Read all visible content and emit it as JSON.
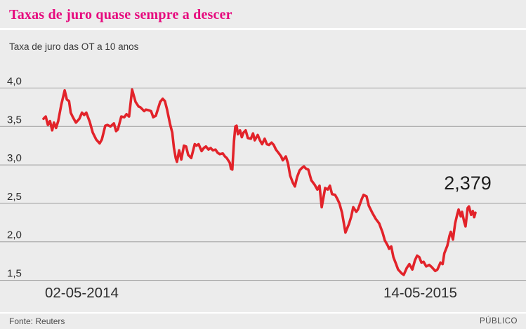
{
  "header": {
    "title": "Taxas de juro quase sempre a descer",
    "subtitle": "Taxa de juro das OT a 10 anos"
  },
  "chart_data": {
    "type": "line",
    "title": "Taxas de juro quase sempre a descer",
    "subtitle": "Taxa de juro das OT a 10 anos",
    "grid": true,
    "legend": false,
    "x_axis": {
      "start_label": "02-05-2014",
      "end_label": "14-05-2015",
      "note": "x given as fraction of time span from first to last observation"
    },
    "y_axis": {
      "range": [
        1.5,
        4.0
      ],
      "ticks": [
        {
          "label": "4,0",
          "value": 4.0
        },
        {
          "label": "3,5",
          "value": 3.5
        },
        {
          "label": "3,0",
          "value": 3.0
        },
        {
          "label": "2,5",
          "value": 2.5
        },
        {
          "label": "2,0",
          "value": 2.0
        },
        {
          "label": "1,5",
          "value": 1.5
        }
      ]
    },
    "annotation": {
      "label": "2,379",
      "value": 2.379
    },
    "series": [
      {
        "name": "Taxa de juro das OT a 10 anos",
        "points": [
          [
            0.0,
            3.6
          ],
          [
            0.005,
            3.63
          ],
          [
            0.01,
            3.52
          ],
          [
            0.015,
            3.57
          ],
          [
            0.02,
            3.45
          ],
          [
            0.024,
            3.55
          ],
          [
            0.029,
            3.48
          ],
          [
            0.034,
            3.57
          ],
          [
            0.041,
            3.78
          ],
          [
            0.049,
            3.97
          ],
          [
            0.054,
            3.85
          ],
          [
            0.059,
            3.83
          ],
          [
            0.063,
            3.68
          ],
          [
            0.068,
            3.62
          ],
          [
            0.075,
            3.55
          ],
          [
            0.083,
            3.6
          ],
          [
            0.089,
            3.68
          ],
          [
            0.094,
            3.65
          ],
          [
            0.099,
            3.68
          ],
          [
            0.107,
            3.56
          ],
          [
            0.114,
            3.42
          ],
          [
            0.122,
            3.33
          ],
          [
            0.13,
            3.28
          ],
          [
            0.135,
            3.33
          ],
          [
            0.143,
            3.51
          ],
          [
            0.148,
            3.52
          ],
          [
            0.155,
            3.5
          ],
          [
            0.163,
            3.54
          ],
          [
            0.168,
            3.44
          ],
          [
            0.172,
            3.46
          ],
          [
            0.18,
            3.63
          ],
          [
            0.187,
            3.62
          ],
          [
            0.192,
            3.66
          ],
          [
            0.198,
            3.63
          ],
          [
            0.205,
            3.98
          ],
          [
            0.213,
            3.82
          ],
          [
            0.22,
            3.76
          ],
          [
            0.224,
            3.75
          ],
          [
            0.233,
            3.7
          ],
          [
            0.237,
            3.72
          ],
          [
            0.244,
            3.71
          ],
          [
            0.249,
            3.7
          ],
          [
            0.254,
            3.62
          ],
          [
            0.26,
            3.64
          ],
          [
            0.265,
            3.73
          ],
          [
            0.27,
            3.82
          ],
          [
            0.276,
            3.86
          ],
          [
            0.281,
            3.83
          ],
          [
            0.286,
            3.72
          ],
          [
            0.293,
            3.53
          ],
          [
            0.298,
            3.42
          ],
          [
            0.302,
            3.22
          ],
          [
            0.306,
            3.09
          ],
          [
            0.309,
            3.04
          ],
          [
            0.314,
            3.19
          ],
          [
            0.319,
            3.07
          ],
          [
            0.325,
            3.25
          ],
          [
            0.33,
            3.24
          ],
          [
            0.335,
            3.13
          ],
          [
            0.342,
            3.09
          ],
          [
            0.35,
            3.27
          ],
          [
            0.354,
            3.25
          ],
          [
            0.359,
            3.27
          ],
          [
            0.366,
            3.18
          ],
          [
            0.371,
            3.22
          ],
          [
            0.376,
            3.24
          ],
          [
            0.382,
            3.2
          ],
          [
            0.387,
            3.22
          ],
          [
            0.392,
            3.19
          ],
          [
            0.398,
            3.2
          ],
          [
            0.403,
            3.16
          ],
          [
            0.408,
            3.14
          ],
          [
            0.415,
            3.15
          ],
          [
            0.42,
            3.11
          ],
          [
            0.424,
            3.09
          ],
          [
            0.431,
            3.03
          ],
          [
            0.434,
            2.95
          ],
          [
            0.437,
            2.94
          ],
          [
            0.441,
            3.31
          ],
          [
            0.444,
            3.5
          ],
          [
            0.447,
            3.51
          ],
          [
            0.45,
            3.4
          ],
          [
            0.455,
            3.45
          ],
          [
            0.459,
            3.36
          ],
          [
            0.463,
            3.42
          ],
          [
            0.468,
            3.45
          ],
          [
            0.473,
            3.35
          ],
          [
            0.48,
            3.34
          ],
          [
            0.485,
            3.41
          ],
          [
            0.489,
            3.32
          ],
          [
            0.496,
            3.39
          ],
          [
            0.501,
            3.32
          ],
          [
            0.506,
            3.27
          ],
          [
            0.512,
            3.34
          ],
          [
            0.517,
            3.27
          ],
          [
            0.522,
            3.26
          ],
          [
            0.528,
            3.29
          ],
          [
            0.533,
            3.26
          ],
          [
            0.538,
            3.2
          ],
          [
            0.545,
            3.15
          ],
          [
            0.55,
            3.11
          ],
          [
            0.554,
            3.06
          ],
          [
            0.561,
            3.11
          ],
          [
            0.566,
            3.02
          ],
          [
            0.571,
            2.86
          ],
          [
            0.577,
            2.77
          ],
          [
            0.582,
            2.72
          ],
          [
            0.587,
            2.84
          ],
          [
            0.593,
            2.93
          ],
          [
            0.598,
            2.96
          ],
          [
            0.603,
            2.98
          ],
          [
            0.608,
            2.95
          ],
          [
            0.613,
            2.94
          ],
          [
            0.62,
            2.8
          ],
          [
            0.628,
            2.74
          ],
          [
            0.634,
            2.68
          ],
          [
            0.639,
            2.73
          ],
          [
            0.644,
            2.45
          ],
          [
            0.652,
            2.7
          ],
          [
            0.658,
            2.68
          ],
          [
            0.663,
            2.73
          ],
          [
            0.668,
            2.62
          ],
          [
            0.675,
            2.61
          ],
          [
            0.68,
            2.56
          ],
          [
            0.685,
            2.5
          ],
          [
            0.691,
            2.38
          ],
          [
            0.699,
            2.12
          ],
          [
            0.707,
            2.23
          ],
          [
            0.712,
            2.32
          ],
          [
            0.717,
            2.45
          ],
          [
            0.724,
            2.39
          ],
          [
            0.728,
            2.42
          ],
          [
            0.737,
            2.56
          ],
          [
            0.741,
            2.61
          ],
          [
            0.748,
            2.59
          ],
          [
            0.753,
            2.47
          ],
          [
            0.761,
            2.38
          ],
          [
            0.769,
            2.3
          ],
          [
            0.777,
            2.24
          ],
          [
            0.785,
            2.12
          ],
          [
            0.79,
            2.02
          ],
          [
            0.797,
            1.95
          ],
          [
            0.8,
            1.91
          ],
          [
            0.805,
            1.94
          ],
          [
            0.81,
            1.8
          ],
          [
            0.815,
            1.73
          ],
          [
            0.821,
            1.64
          ],
          [
            0.829,
            1.59
          ],
          [
            0.834,
            1.57
          ],
          [
            0.841,
            1.66
          ],
          [
            0.847,
            1.71
          ],
          [
            0.854,
            1.64
          ],
          [
            0.86,
            1.76
          ],
          [
            0.865,
            1.82
          ],
          [
            0.87,
            1.8
          ],
          [
            0.875,
            1.73
          ],
          [
            0.88,
            1.74
          ],
          [
            0.886,
            1.68
          ],
          [
            0.893,
            1.7
          ],
          [
            0.899,
            1.67
          ],
          [
            0.907,
            1.62
          ],
          [
            0.912,
            1.64
          ],
          [
            0.919,
            1.73
          ],
          [
            0.924,
            1.71
          ],
          [
            0.928,
            1.85
          ],
          [
            0.935,
            1.95
          ],
          [
            0.94,
            2.08
          ],
          [
            0.943,
            2.13
          ],
          [
            0.948,
            2.03
          ],
          [
            0.953,
            2.24
          ],
          [
            0.958,
            2.36
          ],
          [
            0.961,
            2.42
          ],
          [
            0.966,
            2.33
          ],
          [
            0.969,
            2.39
          ],
          [
            0.974,
            2.26
          ],
          [
            0.977,
            2.2
          ],
          [
            0.982,
            2.44
          ],
          [
            0.985,
            2.46
          ],
          [
            0.99,
            2.35
          ],
          [
            0.994,
            2.4
          ],
          [
            0.997,
            2.32
          ],
          [
            1.0,
            2.379
          ]
        ]
      }
    ]
  },
  "footer": {
    "source": "Fonte: Reuters",
    "brand": "PÚBLICO"
  },
  "colors": {
    "background": "#ececec",
    "title": "#e60a7e",
    "grid": "#9c9c9c",
    "line": "#e2232a",
    "text": "#2d2d2d",
    "muted": "#4c4c4c",
    "divider": "#ffffff"
  }
}
